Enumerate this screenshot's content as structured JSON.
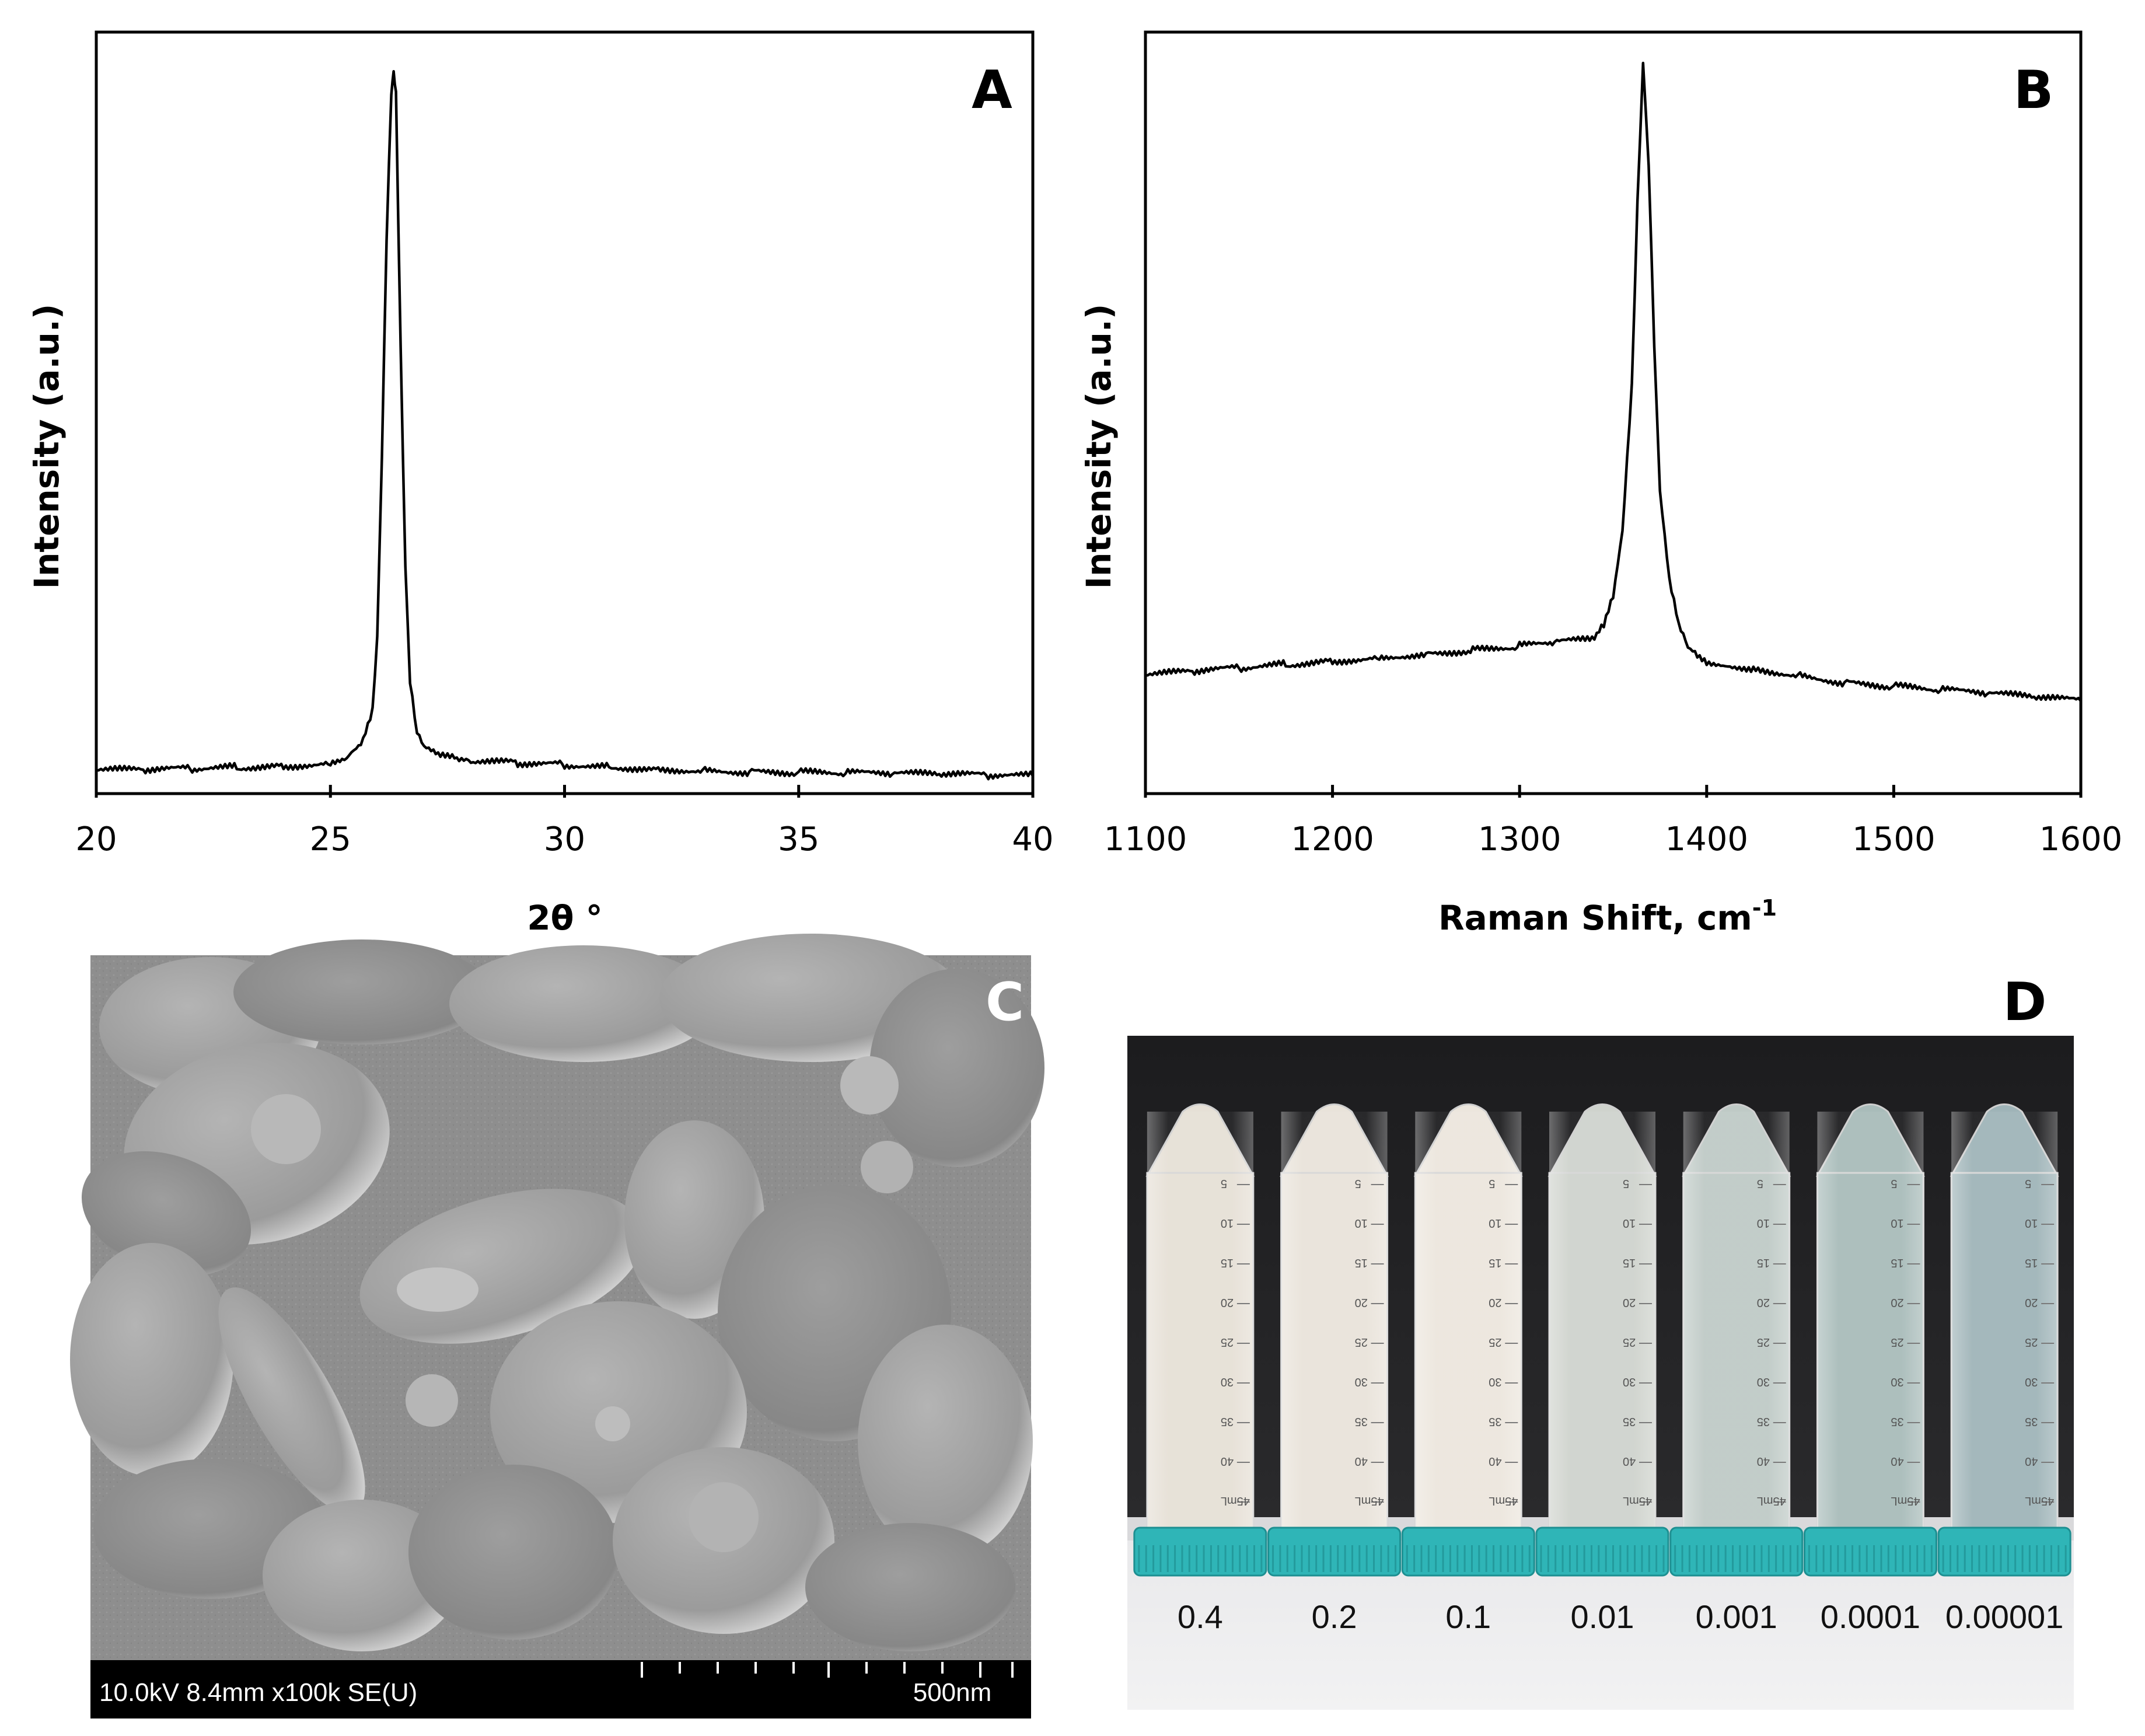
{
  "chart_data": [
    {
      "panel": "A",
      "type": "line",
      "xlabel": "2θ °",
      "ylabel": "Intensity (a.u.)",
      "xlim": [
        20,
        40
      ],
      "ylim": [
        0,
        1
      ],
      "x_ticks": [
        "20",
        "25",
        "30",
        "35",
        "40"
      ],
      "y_ticks_labeled": false,
      "grid": false,
      "series": [
        {
          "x": [
            20,
            21,
            22,
            23,
            24,
            25,
            25.4,
            25.7,
            25.9,
            26.0,
            26.1,
            26.2,
            26.3,
            26.35,
            26.4,
            26.5,
            26.6,
            26.7,
            26.85,
            27.0,
            27.3,
            27.7,
            28,
            29,
            30,
            31,
            32,
            33,
            34,
            35,
            36,
            37,
            38,
            39,
            40
          ],
          "y": [
            0.02,
            0.02,
            0.022,
            0.024,
            0.026,
            0.03,
            0.04,
            0.06,
            0.1,
            0.2,
            0.45,
            0.75,
            0.95,
            0.98,
            0.95,
            0.6,
            0.3,
            0.14,
            0.07,
            0.05,
            0.04,
            0.035,
            0.032,
            0.03,
            0.028,
            0.025,
            0.022,
            0.02,
            0.018,
            0.017,
            0.016,
            0.015,
            0.014,
            0.013,
            0.012
          ]
        }
      ]
    },
    {
      "panel": "B",
      "type": "line",
      "xlabel": "Raman Shift, cm",
      "xlabel_superscript": "-1",
      "ylabel": "Intensity (a.u.)",
      "xlim": [
        1100,
        1600
      ],
      "ylim": [
        0,
        1
      ],
      "x_ticks": [
        "1100",
        "1200",
        "1300",
        "1400",
        "1500",
        "1600"
      ],
      "y_ticks_labeled": false,
      "grid": false,
      "series": [
        {
          "x": [
            1100,
            1125,
            1150,
            1175,
            1200,
            1225,
            1250,
            1275,
            1300,
            1320,
            1340,
            1345,
            1350,
            1355,
            1360,
            1363,
            1366,
            1369,
            1372,
            1375,
            1380,
            1385,
            1390,
            1395,
            1400,
            1410,
            1425,
            1450,
            1475,
            1500,
            1525,
            1550,
            1575,
            1600
          ],
          "y": [
            0.15,
            0.155,
            0.16,
            0.165,
            0.17,
            0.175,
            0.18,
            0.185,
            0.19,
            0.195,
            0.2,
            0.22,
            0.26,
            0.35,
            0.55,
            0.8,
            0.99,
            0.85,
            0.6,
            0.4,
            0.28,
            0.22,
            0.19,
            0.18,
            0.17,
            0.165,
            0.16,
            0.15,
            0.14,
            0.135,
            0.13,
            0.125,
            0.12,
            0.115
          ]
        }
      ]
    }
  ],
  "panels": {
    "A": {
      "label": "A"
    },
    "B": {
      "label": "B"
    },
    "C": {
      "label": "C",
      "sem_info": "10.0kV 8.4mm x100k SE(U)",
      "scale_bar": "500nm"
    },
    "D": {
      "label": "D",
      "tube_concentrations": [
        "0.4",
        "0.2",
        "0.1",
        "0.01",
        "0.001",
        "0.0001",
        "0.00001"
      ],
      "tube_liquid_colors": [
        "#e6e0d6",
        "#e9e3da",
        "#ece6dd",
        "#cfd3cd",
        "#bfcac6",
        "#a9bcba",
        "#9fb4b8"
      ],
      "cap_color": "#2fb5b7",
      "tube_scale_marks": [
        "5",
        "10",
        "15",
        "20",
        "25",
        "30",
        "35",
        "40",
        "45mL"
      ]
    }
  }
}
